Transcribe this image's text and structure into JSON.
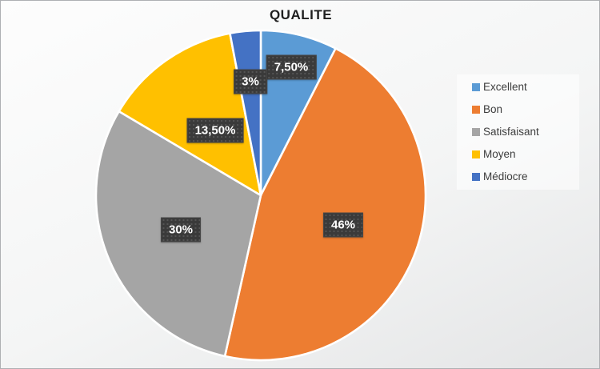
{
  "chart_data": {
    "type": "pie",
    "title": "QUALITE",
    "categories": [
      "Excellent",
      "Bon",
      "Satisfaisant",
      "Moyen",
      "Médiocre"
    ],
    "values": [
      7.5,
      46,
      30,
      13.5,
      3
    ],
    "labels": [
      "7,50%",
      "46%",
      "30%",
      "13,50%",
      "3%"
    ],
    "colors": [
      "#5B9BD5",
      "#ED7D31",
      "#A5A5A5",
      "#FFC000",
      "#4472C4"
    ],
    "start_angle": 0,
    "direction": "clockwise",
    "legend_position": "right",
    "label_box_bg": "#3a3a3a",
    "label_text_color": "#ffffff",
    "slice_gap_color": "#ffffff"
  }
}
